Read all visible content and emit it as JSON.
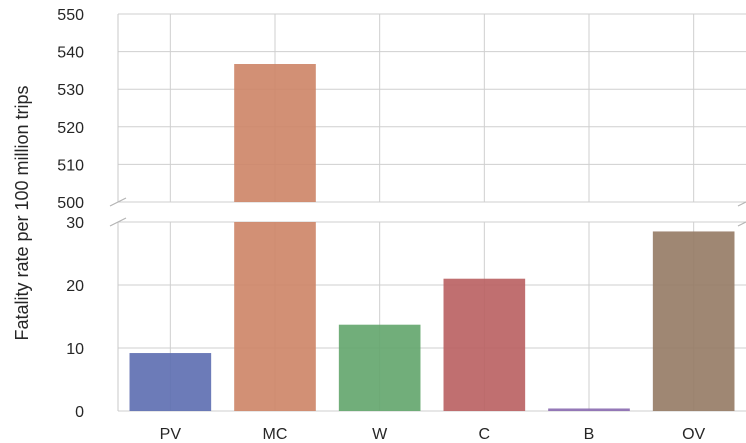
{
  "chart_data": {
    "type": "bar",
    "title": "",
    "xlabel": "",
    "ylabel": "Fatality rate per 100 million trips",
    "categories": [
      "PV",
      "MC",
      "W",
      "C",
      "B",
      "OV"
    ],
    "values": [
      9.2,
      536.7,
      13.7,
      21.0,
      0.4,
      28.5
    ],
    "colors": [
      "#5c6db0",
      "#cd8466",
      "#62a56c",
      "#b95f60",
      "#8a6ab0",
      "#957a64"
    ],
    "broken_axis": true,
    "upper_ylim": [
      500,
      550
    ],
    "upper_ticks": [
      500,
      510,
      520,
      530,
      540,
      550
    ],
    "lower_ylim": [
      0,
      30
    ],
    "lower_ticks": [
      0,
      10,
      20,
      30
    ],
    "grid": true
  }
}
